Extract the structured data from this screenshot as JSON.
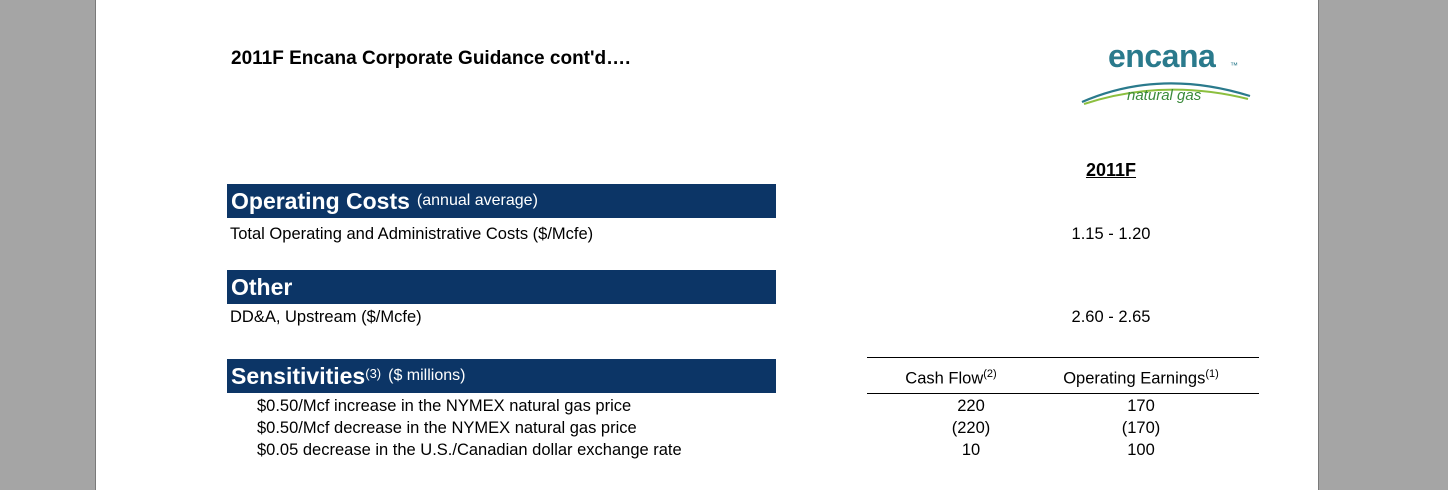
{
  "doc": {
    "title": "2011F Encana Corporate Guidance cont'd….",
    "year_header": "2011F"
  },
  "logo": {
    "wordmark": "encana",
    "tagline": "natural gas",
    "brand_color": "#2a7a8c",
    "tagline_color": "#3a8a3a"
  },
  "colors": {
    "band": "#0c3566",
    "page_background": "#ffffff",
    "viewer_background": "#a5a5a5"
  },
  "operating_costs": {
    "heading": "Operating Costs",
    "note": "(annual average)",
    "row_label": "Total Operating and Administrative Costs ($/Mcfe)",
    "row_value": "1.15 - 1.20"
  },
  "other": {
    "heading": "Other",
    "row_label": "DD&A, Upstream ($/Mcfe)",
    "row_value": "2.60 - 2.65"
  },
  "sensitivities": {
    "heading": "Sensitivities",
    "heading_sup": "(3)",
    "note": "($ millions)",
    "col_cash_flow": "Cash Flow",
    "col_cash_flow_sup": "(2)",
    "col_operating_earnings": "Operating Earnings",
    "col_operating_earnings_sup": "(1)",
    "rows": [
      {
        "label": "$0.50/Mcf increase in the NYMEX natural gas price",
        "cash_flow": "220",
        "earnings": "170"
      },
      {
        "label": "$0.50/Mcf decrease in the NYMEX natural gas price",
        "cash_flow": "(220)",
        "earnings": "(170)"
      },
      {
        "label": "$0.05 decrease in the U.S./Canadian dollar exchange rate",
        "cash_flow": "10",
        "earnings": "100"
      }
    ]
  }
}
